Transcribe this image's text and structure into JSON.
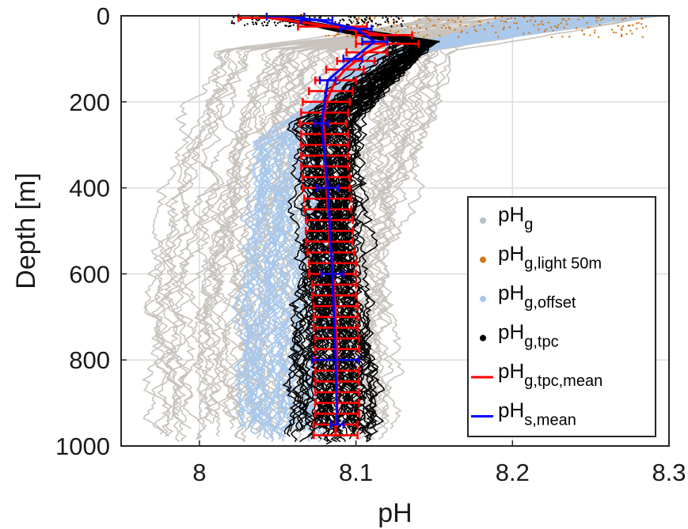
{
  "chart_data": {
    "type": "line",
    "xlabel": "pH",
    "ylabel": "Depth [m]",
    "xlim": [
      7.95,
      8.3
    ],
    "ylim": [
      0,
      1000
    ],
    "y_reversed": true,
    "grid": true,
    "xticks": [
      "8",
      "8.1",
      "8.2",
      "8.3"
    ],
    "xtick_values": [
      8.0,
      8.1,
      8.2,
      8.3
    ],
    "yticks": [
      "0",
      "200",
      "400",
      "600",
      "800",
      "1000"
    ],
    "ytick_values": [
      0,
      200,
      400,
      600,
      800,
      1000
    ],
    "legend_position": "bottom-right",
    "colors": {
      "ph_g": "#c8c3bd",
      "ph_g_light": "#d0781e",
      "ph_g_offset": "#a9c8ec",
      "ph_g_tpc": "#000000",
      "ph_g_tpc_mean": "#ff0000",
      "ph_s_mean": "#0000ff"
    },
    "legend": [
      {
        "base": "pH",
        "sub": "g",
        "marker": "dot",
        "color": "#b8bdd0"
      },
      {
        "base": "pH",
        "sub": "g,light 50m",
        "marker": "dot",
        "color": "#d0781e"
      },
      {
        "base": "pH",
        "sub": "g,offset",
        "marker": "dot",
        "color": "#a9c8ec"
      },
      {
        "base": "pH",
        "sub": "g,tpc",
        "marker": "dot",
        "color": "#000000"
      },
      {
        "base": "pH",
        "sub": "g,tpc,mean",
        "marker": "line",
        "color": "#ff0000"
      },
      {
        "base": "pH",
        "sub": "s,mean",
        "marker": "line",
        "color": "#0000ff"
      }
    ],
    "series": [
      {
        "name": "pH_g,tpc,mean",
        "type": "errorbar",
        "depth": [
          5,
          25,
          45,
          65,
          85,
          105,
          125,
          150,
          175,
          200,
          225,
          250,
          275,
          300,
          325,
          350,
          375,
          400,
          425,
          450,
          475,
          500,
          525,
          550,
          575,
          600,
          625,
          650,
          675,
          700,
          725,
          750,
          775,
          800,
          825,
          850,
          875,
          900,
          925,
          950,
          975
        ],
        "x": [
          8.045,
          8.085,
          8.118,
          8.12,
          8.107,
          8.1,
          8.093,
          8.087,
          8.084,
          8.081,
          8.08,
          8.079,
          8.08,
          8.08,
          8.08,
          8.08,
          8.081,
          8.081,
          8.082,
          8.082,
          8.083,
          8.083,
          8.083,
          8.084,
          8.085,
          8.085,
          8.086,
          8.086,
          8.087,
          8.087,
          8.087,
          8.088,
          8.088,
          8.088,
          8.088,
          8.088,
          8.088,
          8.088,
          8.088,
          8.087,
          8.087
        ],
        "err": [
          0.02,
          0.022,
          0.018,
          0.02,
          0.013,
          0.012,
          0.012,
          0.013,
          0.014,
          0.015,
          0.015,
          0.015,
          0.015,
          0.015,
          0.015,
          0.015,
          0.015,
          0.015,
          0.015,
          0.015,
          0.015,
          0.015,
          0.015,
          0.015,
          0.015,
          0.015,
          0.014,
          0.014,
          0.014,
          0.014,
          0.014,
          0.014,
          0.014,
          0.014,
          0.014,
          0.014,
          0.014,
          0.014,
          0.014,
          0.014,
          0.014
        ]
      },
      {
        "name": "pH_s,mean",
        "type": "errorbar",
        "depth": [
          2,
          10,
          30,
          60,
          100,
          150,
          250,
          400,
          600,
          800,
          950
        ],
        "x": [
          8.055,
          8.075,
          8.1,
          8.112,
          8.098,
          8.082,
          8.078,
          8.082,
          8.085,
          8.087,
          8.088
        ],
        "err": [
          0.012,
          0.01,
          0.01,
          0.008,
          0.006,
          0.005,
          0.004,
          0.007,
          0.007,
          0.015,
          0.004
        ]
      }
    ]
  }
}
